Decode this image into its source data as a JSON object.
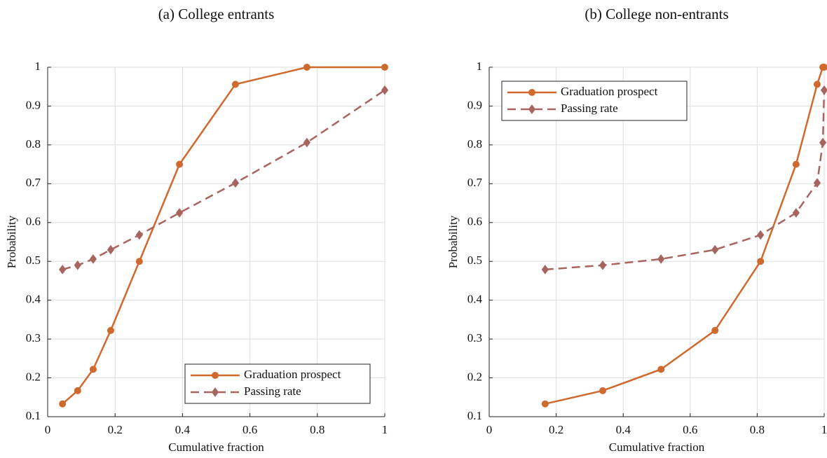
{
  "chart_data": [
    {
      "type": "line",
      "title": "(a) College entrants",
      "xlabel": "Cumulative fraction",
      "ylabel": "Probability",
      "x": [
        0.044,
        0.089,
        0.135,
        0.187,
        0.272,
        0.391,
        0.557,
        0.769,
        1.0
      ],
      "series": [
        {
          "name": "Graduation prospect",
          "color": "#d0692d",
          "linestyle": "solid",
          "marker": "circle",
          "values": [
            0.133,
            0.167,
            0.222,
            0.322,
            0.5,
            0.75,
            0.956,
            1.0,
            1.0
          ]
        },
        {
          "name": "Passing rate",
          "color": "#a86560",
          "linestyle": "dashed",
          "marker": "diamond",
          "values": [
            0.479,
            0.49,
            0.506,
            0.53,
            0.568,
            0.625,
            0.702,
            0.806,
            0.941
          ]
        }
      ],
      "xlim": [
        0,
        1
      ],
      "ylim": [
        0.1,
        1
      ],
      "xticks": [
        0,
        0.2,
        0.4,
        0.6,
        0.8,
        1
      ],
      "yticks": [
        0.1,
        0.2,
        0.3,
        0.4,
        0.5,
        0.6,
        0.7,
        0.8,
        0.9,
        1
      ],
      "grid": true,
      "legend": "lower right"
    },
    {
      "type": "line",
      "title": "(b) College non-entrants",
      "xlabel": "Cumulative fraction",
      "ylabel": "Probability",
      "x": [
        0.167,
        0.339,
        0.513,
        0.674,
        0.81,
        0.916,
        0.979,
        0.996,
        1.0
      ],
      "series": [
        {
          "name": "Graduation prospect",
          "color": "#d0692d",
          "linestyle": "solid",
          "marker": "circle",
          "values": [
            0.133,
            0.167,
            0.222,
            0.322,
            0.5,
            0.75,
            0.956,
            1.0,
            1.0
          ]
        },
        {
          "name": "Passing rate",
          "color": "#a86560",
          "linestyle": "dashed",
          "marker": "diamond",
          "values": [
            0.479,
            0.49,
            0.506,
            0.53,
            0.568,
            0.625,
            0.702,
            0.806,
            0.941
          ]
        }
      ],
      "xlim": [
        0,
        1
      ],
      "ylim": [
        0.1,
        1
      ],
      "xticks": [
        0,
        0.2,
        0.4,
        0.6,
        0.8,
        1
      ],
      "yticks": [
        0.1,
        0.2,
        0.3,
        0.4,
        0.5,
        0.6,
        0.7,
        0.8,
        0.9,
        1
      ],
      "grid": true,
      "legend": "upper left"
    }
  ]
}
